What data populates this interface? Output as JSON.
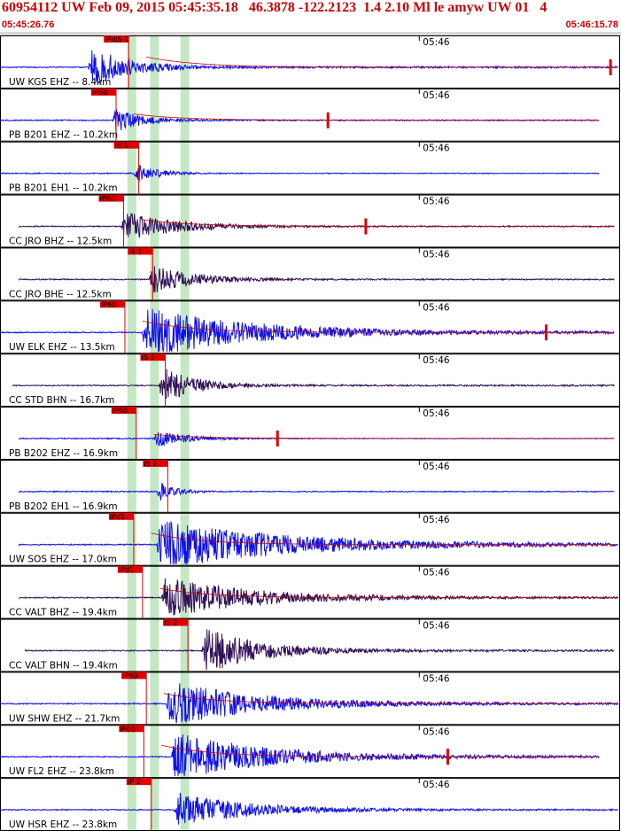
{
  "header": {
    "title": "60954112 UW Feb 09, 2015 05:45:35.18   46.3878 -122.2123  1.4 2.10 Ml le amyw UW 01   4",
    "start_time": "05:45:26.76",
    "end_time": "05:46:15.78"
  },
  "colors": {
    "trace_primary": "#1010ee",
    "trace_alt": "#301058",
    "pick_box": "#e00000",
    "marker": "#e00000",
    "window_band": "#bde5bd",
    "envelope": "#cc0000",
    "border": "#000000"
  },
  "chart_data": {
    "type": "line",
    "title": "60954112 UW Feb 09, 2015 05:45:35.18   46.3878 -122.2123  1.4 2.10 Ml le amyw UW 01   4",
    "x_range": [
      "05:45:26.76",
      "05:46:15.78"
    ],
    "time_tick_label": "05:46",
    "time_tick_seconds": 33.24,
    "duration_seconds": 49.02,
    "grid": true,
    "series": [
      {
        "name": "UW KGS EHZ -- 8.4km",
        "color": "#1010ee",
        "pick_label": "iPdiS 1",
        "pick_time": 10.2,
        "onset_time": 7.0,
        "amplitude": 0.9,
        "decay": 0.18,
        "baseline_start": 0.0,
        "baseline_end": 49.02,
        "has_envelope": true,
        "marker_time": 48.4
      },
      {
        "name": "PB B201 EHZ -- 10.2km",
        "color": "#1010ee",
        "pick_label": "iP60",
        "pick_time": 9.2,
        "onset_time": 8.9,
        "amplitude": 0.55,
        "decay": 0.25,
        "baseline_start": 0.0,
        "baseline_end": 47.5,
        "has_envelope": true,
        "marker_time": 26.0
      },
      {
        "name": "PB B201 EH1 -- 10.2km",
        "color": "#1010ee",
        "pick_label": "iS 1",
        "pick_time": 11.0,
        "onset_time": 10.6,
        "amplitude": 0.4,
        "decay": 0.3,
        "baseline_start": 0.0,
        "baseline_end": 47.5,
        "has_envelope": false,
        "marker_time": null
      },
      {
        "name": "CC JRO BHZ -- 12.5km",
        "color": "#301058",
        "pick_label": "iP60",
        "pick_time": 9.8,
        "onset_time": 9.6,
        "amplitude": 0.6,
        "decay": 0.12,
        "baseline_start": 1.5,
        "baseline_end": 48.7,
        "has_envelope": true,
        "marker_time": 29.0
      },
      {
        "name": "CC JRO BHE -- 12.5km",
        "color": "#301058",
        "pick_label": "iS 1",
        "pick_time": 12.1,
        "onset_time": 11.8,
        "amplitude": 0.6,
        "decay": 0.15,
        "baseline_start": 1.5,
        "baseline_end": 48.7,
        "has_envelope": false,
        "marker_time": null
      },
      {
        "name": "UW ELK EHZ -- 13.5km",
        "color": "#1010ee",
        "pick_label": "iP60",
        "pick_time": 9.9,
        "onset_time": 11.2,
        "amplitude": 1.0,
        "decay": 0.06,
        "baseline_start": 0.0,
        "baseline_end": 48.7,
        "has_envelope": true,
        "marker_time": 43.3
      },
      {
        "name": "CC STD BHN -- 16.7km",
        "color": "#301058",
        "pick_label": "iS 1",
        "pick_time": 13.1,
        "onset_time": 12.6,
        "amplitude": 0.8,
        "decay": 0.2,
        "baseline_start": 1.0,
        "baseline_end": 48.7,
        "has_envelope": false,
        "marker_time": null
      },
      {
        "name": "PB B202 EHZ -- 16.9km",
        "color": "#1010ee",
        "pick_label": "iP60",
        "pick_time": 10.8,
        "onset_time": 12.2,
        "amplitude": 0.35,
        "decay": 0.2,
        "baseline_start": 1.5,
        "baseline_end": 48.7,
        "has_envelope": true,
        "marker_time": 22.0
      },
      {
        "name": "PB B202 EH1 -- 16.9km",
        "color": "#1010ee",
        "pick_label": "iS 1",
        "pick_time": 13.3,
        "onset_time": 12.4,
        "amplitude": 0.45,
        "decay": 0.4,
        "baseline_start": 1.5,
        "baseline_end": 48.7,
        "has_envelope": false,
        "marker_time": null
      },
      {
        "name": "UW SOS EHZ -- 17.0km",
        "color": "#1010ee",
        "pick_label": "iPd1",
        "pick_time": 10.6,
        "onset_time": 12.4,
        "amplitude": 1.0,
        "decay": 0.05,
        "baseline_start": 1.5,
        "baseline_end": 49.02,
        "has_envelope": true,
        "marker_time": null
      },
      {
        "name": "CC VALT BHZ -- 19.4km",
        "color": "#301058",
        "pick_label": "iPd1",
        "pick_time": 11.3,
        "onset_time": 12.8,
        "amplitude": 0.8,
        "decay": 0.07,
        "baseline_start": 1.5,
        "baseline_end": 49.02,
        "has_envelope": true,
        "marker_time": null
      },
      {
        "name": "CC VALT BHN -- 19.4km",
        "color": "#301058",
        "pick_label": "iS 2",
        "pick_time": 14.9,
        "onset_time": 16.0,
        "amplitude": 1.0,
        "decay": 0.12,
        "baseline_start": 2.0,
        "baseline_end": 48.7,
        "has_envelope": false,
        "marker_time": null
      },
      {
        "name": "UW SHW EHZ -- 21.7km",
        "color": "#1010ee",
        "pick_label": "iP60",
        "pick_time": 11.6,
        "onset_time": 13.2,
        "amplitude": 0.9,
        "decay": 0.07,
        "baseline_start": 0.0,
        "baseline_end": 49.02,
        "has_envelope": true,
        "marker_time": null
      },
      {
        "name": "UW FL2 EHZ -- 23.8km",
        "color": "#1010ee",
        "pick_label": "iP60",
        "pick_time": 11.4,
        "onset_time": 13.6,
        "amplitude": 1.0,
        "decay": 0.07,
        "baseline_start": 0.0,
        "baseline_end": 47.5,
        "has_envelope": true,
        "marker_time": 35.5
      },
      {
        "name": "UW HSR EHZ -- 23.8km",
        "color": "#1010ee",
        "pick_label": "iP 1",
        "pick_time": 12.0,
        "onset_time": 13.8,
        "amplitude": 0.7,
        "decay": 0.09,
        "baseline_start": 0.0,
        "baseline_end": 49.02,
        "has_envelope": false,
        "marker_time": null
      }
    ],
    "windows": [
      {
        "start": 10.1,
        "end": 10.8
      },
      {
        "start": 11.9,
        "end": 12.6
      },
      {
        "start": 14.3,
        "end": 15.0
      }
    ]
  }
}
